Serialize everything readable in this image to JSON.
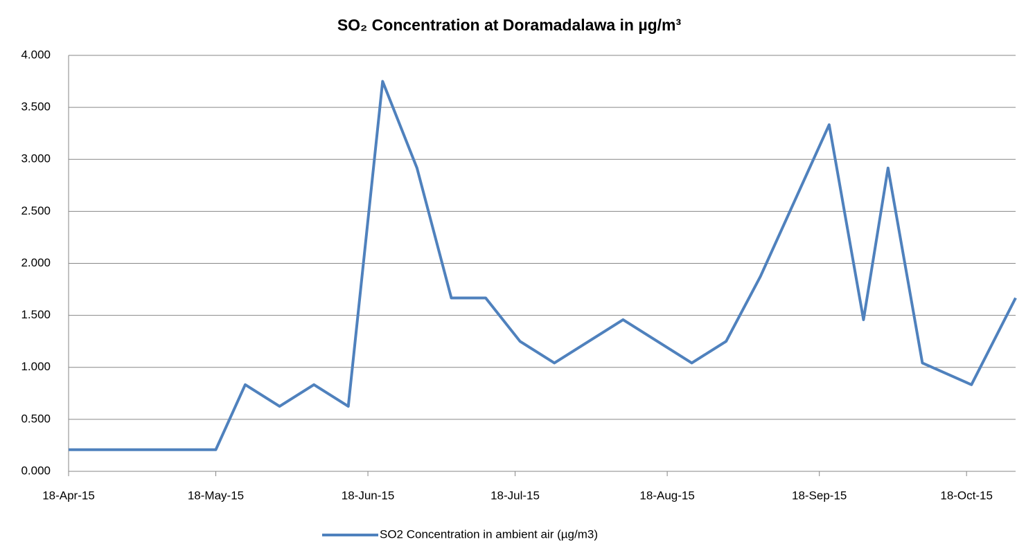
{
  "chart_data": {
    "type": "line",
    "title": "SO₂ Concentration at Doramadalawa in µg/m³",
    "x": [
      "2015-04-18",
      "2015-05-18",
      "2015-05-24",
      "2015-05-31",
      "2015-06-07",
      "2015-06-14",
      "2015-06-21",
      "2015-06-28",
      "2015-07-05",
      "2015-07-12",
      "2015-07-19",
      "2015-07-26",
      "2015-08-09",
      "2015-08-23",
      "2015-08-30",
      "2015-09-06",
      "2015-09-20",
      "2015-09-27",
      "2015-10-02",
      "2015-10-09",
      "2015-10-19",
      "2015-10-28"
    ],
    "series": [
      {
        "name": "SO2 Concentration in ambient air (µg/m3)",
        "color": "#4f81bd",
        "values": [
          0.208,
          0.208,
          0.833,
          0.625,
          0.833,
          0.625,
          3.75,
          2.917,
          1.667,
          1.667,
          1.25,
          1.042,
          1.458,
          1.042,
          1.25,
          1.875,
          3.333,
          1.458,
          2.917,
          1.042,
          0.833,
          1.667
        ]
      }
    ],
    "xlim": [
      "2015-04-18",
      "2015-10-28"
    ],
    "xticks": [
      {
        "value": "2015-04-18",
        "label": "18-Apr-15"
      },
      {
        "value": "2015-05-18",
        "label": "18-May-15"
      },
      {
        "value": "2015-06-18",
        "label": "18-Jun-15"
      },
      {
        "value": "2015-07-18",
        "label": "18-Jul-15"
      },
      {
        "value": "2015-08-18",
        "label": "18-Aug-15"
      },
      {
        "value": "2015-09-18",
        "label": "18-Sep-15"
      },
      {
        "value": "2015-10-18",
        "label": "18-Oct-15"
      }
    ],
    "ylim": [
      0,
      4
    ],
    "yticks": [
      {
        "value": 0,
        "label": "0.000"
      },
      {
        "value": 0.5,
        "label": "0.500"
      },
      {
        "value": 1,
        "label": "1.000"
      },
      {
        "value": 1.5,
        "label": "1.500"
      },
      {
        "value": 2,
        "label": "2.000"
      },
      {
        "value": 2.5,
        "label": "2.500"
      },
      {
        "value": 3,
        "label": "3.000"
      },
      {
        "value": 3.5,
        "label": "3.500"
      },
      {
        "value": 4,
        "label": "4.000"
      }
    ],
    "grid": true,
    "legend": "bottom"
  }
}
